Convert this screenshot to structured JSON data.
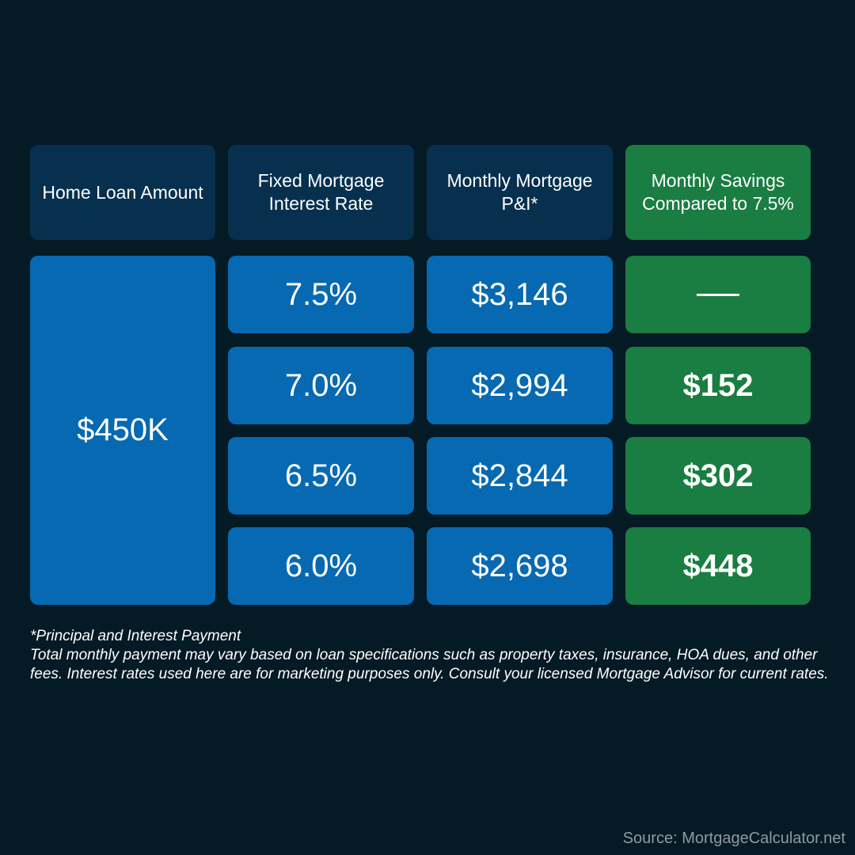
{
  "headers": {
    "loan_amount": "Home Loan Amount",
    "interest_rate": "Fixed Mortgage Interest Rate",
    "monthly_payment": "Monthly Mortgage P&I*",
    "monthly_savings": "Monthly Savings Compared to 7.5%"
  },
  "loan_amount": "$450K",
  "rows": [
    {
      "rate": "7.5%",
      "payment": "$3,146",
      "savings": ""
    },
    {
      "rate": "7.0%",
      "payment": "$2,994",
      "savings": "$152"
    },
    {
      "rate": "6.5%",
      "payment": "$2,844",
      "savings": "$302"
    },
    {
      "rate": "6.0%",
      "payment": "$2,698",
      "savings": "$448"
    }
  ],
  "footnote": {
    "asterisk": "*Principal and Interest Payment",
    "disclaimer": "Total monthly payment may vary based on loan specifications such as property taxes, insurance, HOA dues, and other fees. Interest rates used here are for marketing purposes only. Consult your licensed Mortgage Advisor for current rates."
  },
  "source": "Source: MortgageCalculator.net",
  "colors": {
    "background": "#041a25",
    "header": "#07304f",
    "blue_cell": "#0669b2",
    "green_cell": "#1a7d41"
  }
}
